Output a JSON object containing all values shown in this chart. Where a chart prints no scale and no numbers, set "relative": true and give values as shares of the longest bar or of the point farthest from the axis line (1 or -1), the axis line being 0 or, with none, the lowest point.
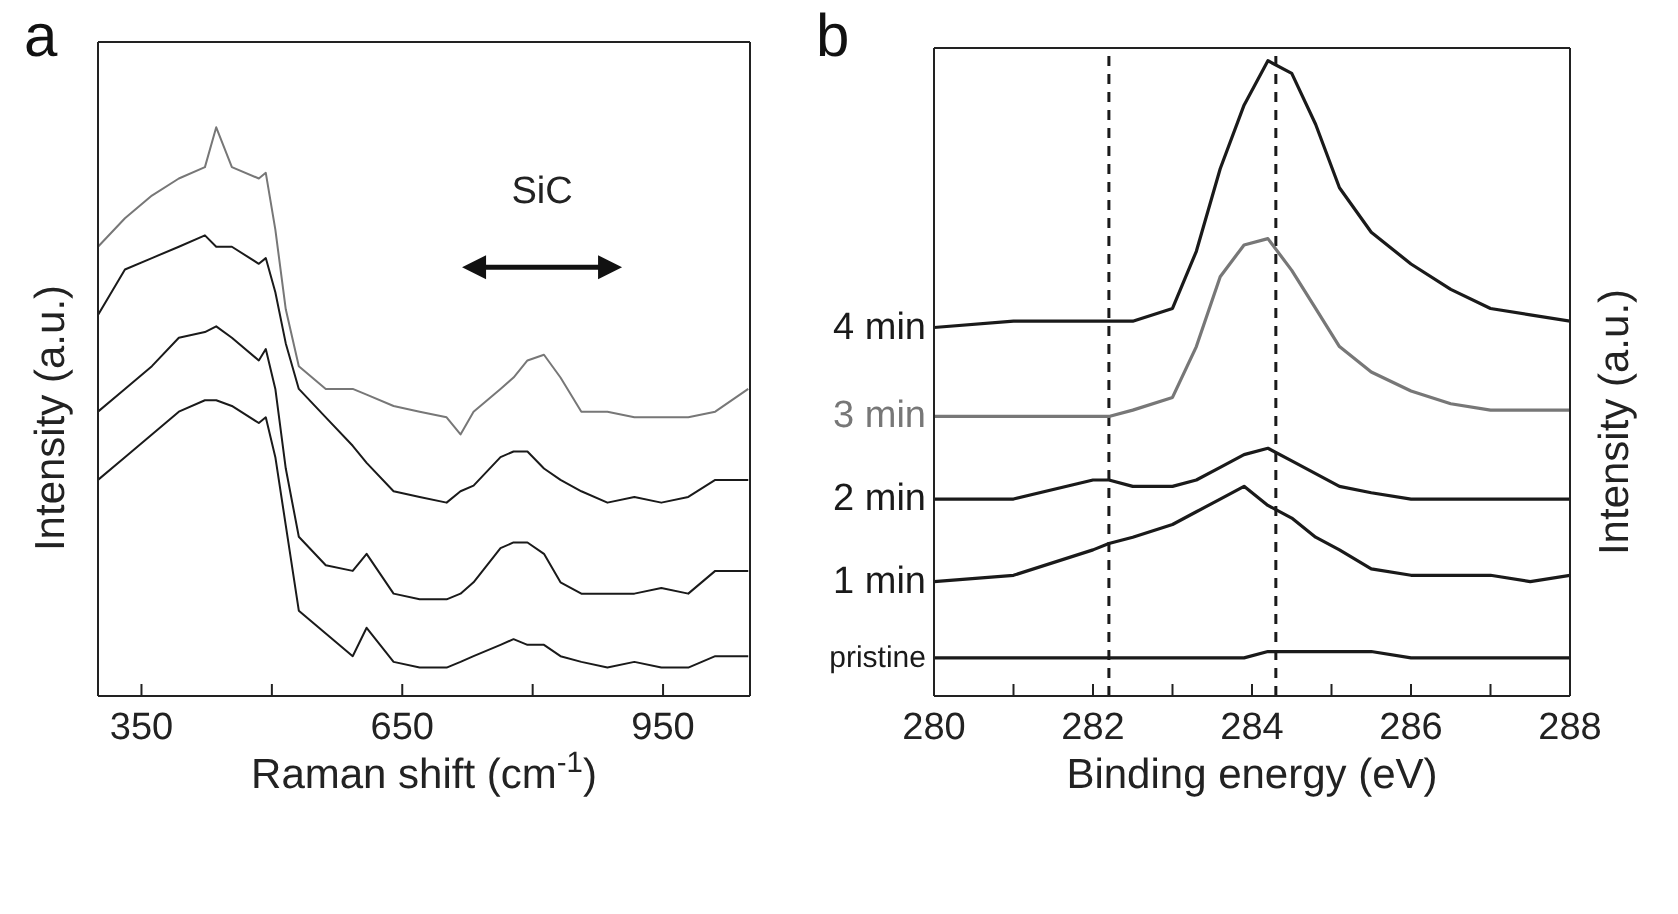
{
  "chart_data": [
    {
      "type": "line",
      "title": "a",
      "xlabel": "Raman shift (cm$^{-1}$)",
      "ylabel": "Intensity (a.u.)",
      "relative": true,
      "marker": "none",
      "x": [
        300,
        331,
        362,
        393,
        423,
        436,
        454,
        485,
        493,
        504,
        516,
        531,
        562,
        593,
        609,
        640,
        670,
        701,
        717,
        732,
        763,
        778,
        794,
        813,
        832,
        856,
        886,
        917,
        948,
        979,
        1010,
        1048
      ],
      "xlim": [
        300,
        1050
      ],
      "xticks": [
        350,
        {
          "value": 500,
          "label": null
        },
        650,
        {
          "value": 800,
          "label": null
        },
        950
      ],
      "annotations": [
        "SiC"
      ],
      "series": [
        {
          "color": "#777777",
          "values": [
            0.79,
            0.84,
            0.88,
            0.91,
            0.93,
            1.0,
            0.93,
            0.91,
            0.92,
            0.82,
            0.68,
            0.58,
            0.54,
            0.54,
            0.53,
            0.51,
            0.5,
            0.49,
            0.46,
            0.5,
            0.54,
            0.56,
            0.59,
            0.6,
            0.56,
            0.5,
            0.5,
            0.49,
            0.49,
            0.49,
            0.5,
            0.54
          ]
        },
        {
          "color": "#1a1a1a",
          "values": [
            0.67,
            0.75,
            0.77,
            0.79,
            0.81,
            0.79,
            0.79,
            0.76,
            0.77,
            0.71,
            0.62,
            0.54,
            0.49,
            0.44,
            0.41,
            0.36,
            0.35,
            0.34,
            0.36,
            0.37,
            0.42,
            0.43,
            0.43,
            0.4,
            0.38,
            0.36,
            0.34,
            0.35,
            0.34,
            0.35,
            0.38,
            0.38
          ]
        },
        {
          "color": "#1a1a1a",
          "values": [
            0.5,
            0.54,
            0.58,
            0.63,
            0.64,
            0.65,
            0.63,
            0.59,
            0.61,
            0.54,
            0.4,
            0.28,
            0.23,
            0.22,
            0.25,
            0.18,
            0.17,
            0.17,
            0.18,
            0.2,
            0.26,
            0.27,
            0.27,
            0.25,
            0.2,
            0.18,
            0.18,
            0.18,
            0.19,
            0.18,
            0.22,
            0.22
          ]
        },
        {
          "color": "#1a1a1a",
          "values": [
            0.38,
            0.42,
            0.46,
            0.5,
            0.52,
            0.52,
            0.51,
            0.48,
            0.49,
            0.42,
            0.3,
            0.15,
            0.11,
            0.07,
            0.12,
            0.06,
            0.05,
            0.05,
            0.06,
            0.07,
            0.09,
            0.1,
            0.09,
            0.09,
            0.07,
            0.06,
            0.05,
            0.06,
            0.05,
            0.05,
            0.07,
            0.07
          ]
        }
      ]
    },
    {
      "type": "line",
      "title": "b",
      "xlabel": "Binding energy (eV)",
      "ylabel": "Intensity (a.u.)",
      "relative": true,
      "marker": "none",
      "x": [
        280,
        281,
        282,
        282.2,
        282.5,
        283,
        283.3,
        283.6,
        283.9,
        284.2,
        284.5,
        284.8,
        285.1,
        285.5,
        286,
        286.5,
        287,
        287.5,
        288
      ],
      "xlim": [
        280,
        288
      ],
      "xticks": [
        280,
        {
          "value": 281,
          "label": null
        },
        282,
        {
          "value": 283,
          "label": null
        },
        284,
        {
          "value": 285,
          "label": null
        },
        286,
        {
          "value": 287,
          "label": null
        },
        288
      ],
      "ref_lines": [
        {
          "axis": "x",
          "value": 282.2,
          "color": "#1a1a1a",
          "line_style": "dashed"
        },
        {
          "axis": "x",
          "value": 284.3,
          "color": "#1a1a1a",
          "line_style": "dashed"
        }
      ],
      "series": [
        {
          "name": "4 min",
          "color": "#1a1a1a",
          "values": [
            0.58,
            0.59,
            0.59,
            0.59,
            0.59,
            0.61,
            0.7,
            0.83,
            0.93,
            1.0,
            0.98,
            0.9,
            0.8,
            0.73,
            0.68,
            0.64,
            0.61,
            0.6,
            0.59
          ]
        },
        {
          "name": "3 min",
          "color": "#777777",
          "values": [
            0.44,
            0.44,
            0.44,
            0.44,
            0.45,
            0.47,
            0.55,
            0.66,
            0.71,
            0.72,
            0.67,
            0.61,
            0.55,
            0.51,
            0.48,
            0.46,
            0.45,
            0.45,
            0.45
          ]
        },
        {
          "name": "2 min",
          "color": "#1a1a1a",
          "values": [
            0.31,
            0.31,
            0.34,
            0.34,
            0.33,
            0.33,
            0.34,
            0.36,
            0.38,
            0.39,
            0.37,
            0.35,
            0.33,
            0.32,
            0.31,
            0.31,
            0.31,
            0.31,
            0.31
          ]
        },
        {
          "name": "1 min",
          "color": "#1a1a1a",
          "values": [
            0.18,
            0.19,
            0.23,
            0.24,
            0.25,
            0.27,
            0.29,
            0.31,
            0.33,
            0.3,
            0.28,
            0.25,
            0.23,
            0.2,
            0.19,
            0.19,
            0.19,
            0.18,
            0.19
          ]
        },
        {
          "name": "pristine",
          "color": "#1a1a1a",
          "values": [
            0.06,
            0.06,
            0.06,
            0.06,
            0.06,
            0.06,
            0.06,
            0.06,
            0.06,
            0.07,
            0.07,
            0.07,
            0.07,
            0.07,
            0.06,
            0.06,
            0.06,
            0.06,
            0.06
          ]
        }
      ]
    }
  ]
}
